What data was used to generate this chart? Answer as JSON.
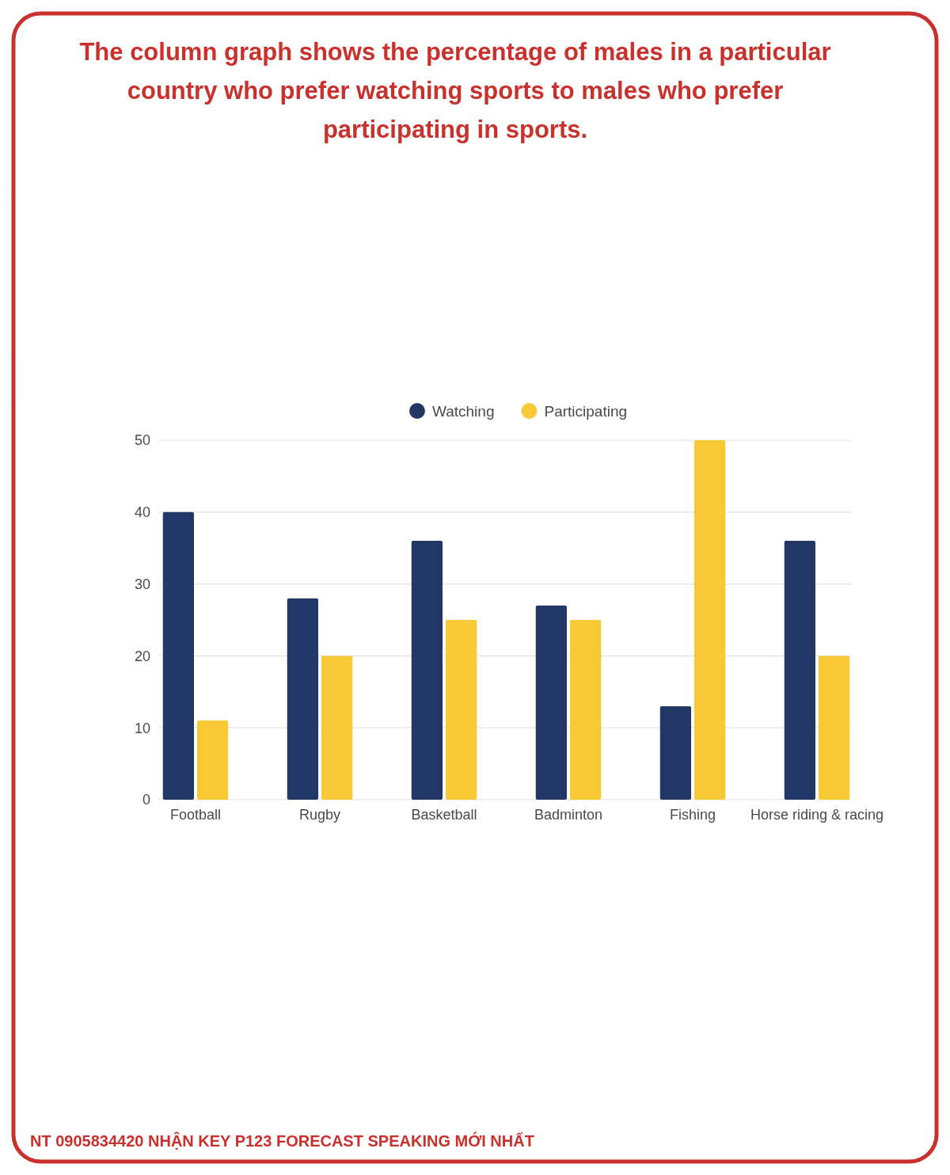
{
  "chart_data": {
    "type": "bar",
    "title": "The column graph shows the percentage of males in a particular country who prefer watching sports to males who prefer participating in sports.",
    "categories": [
      "Football",
      "Rugby",
      "Basketball",
      "Badminton",
      "Fishing",
      "Horse riding & racing"
    ],
    "series": [
      {
        "name": "Watching",
        "color": "#233767",
        "values": [
          40,
          28,
          36,
          27,
          13,
          36
        ]
      },
      {
        "name": "Participating",
        "color": "#f6c935",
        "values": [
          11,
          20,
          25,
          25,
          50,
          20
        ]
      }
    ],
    "ylim": [
      0,
      50
    ],
    "yticks": [
      0,
      10,
      20,
      30,
      40,
      50
    ],
    "grid": "y",
    "legend": "top",
    "annotations": [
      "NT 0905834420 NHẬN KEY P123 FORECAST SPEAKING MỚI NHẤT"
    ]
  }
}
